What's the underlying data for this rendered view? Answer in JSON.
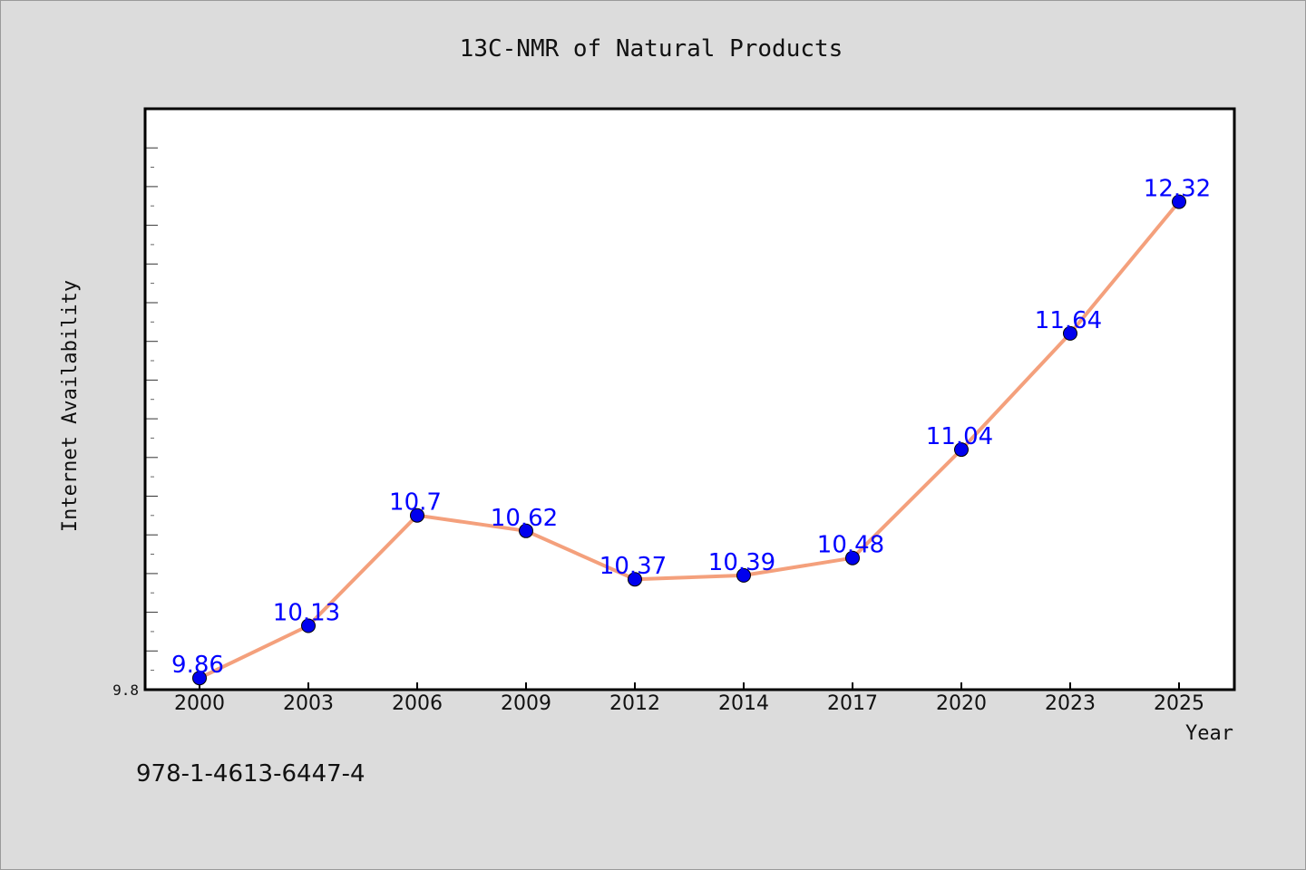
{
  "chart_data": {
    "type": "line",
    "title": "13C-NMR of Natural Products",
    "xlabel": "Year",
    "ylabel": "Internet Availability",
    "categories": [
      "2000",
      "2003",
      "2006",
      "2009",
      "2012",
      "2014",
      "2017",
      "2020",
      "2023",
      "2025"
    ],
    "series": [
      {
        "values": [
          9.86,
          10.13,
          10.7,
          10.62,
          10.37,
          10.39,
          10.48,
          11.04,
          11.64,
          12.32
        ],
        "labels": [
          "9.86",
          "10.13",
          "10.7",
          "10.62",
          "10.37",
          "10.39",
          "10.48",
          "11.04",
          "11.64",
          "12.32"
        ],
        "line_color": "#f4a07c",
        "marker_color": "#0000ee"
      }
    ],
    "y_tick_label": "9.8",
    "ylim": [
      9.8,
      12.8
    ],
    "grid": false,
    "legend": "none"
  },
  "footer": {
    "isbn": "978-1-4613-6447-4"
  }
}
